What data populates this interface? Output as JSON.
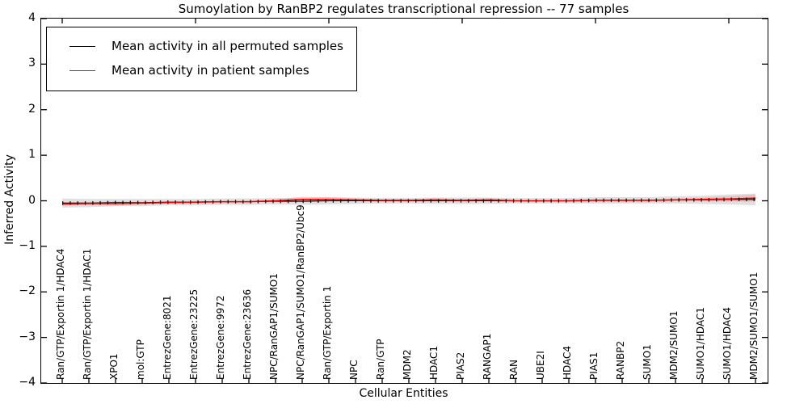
{
  "title": "Sumoylation by RanBP2 regulates transcriptional repression -- 77 samples",
  "axes": {
    "ylabel": "Inferred Activity",
    "xlabel": "Cellular Entities",
    "ytick_labels": [
      "4",
      "3",
      "2",
      "1",
      "0",
      "−1",
      "−2",
      "−3",
      "−4"
    ]
  },
  "legend": {
    "items": [
      {
        "label": "Mean activity in all permuted samples",
        "color": "#000000"
      },
      {
        "label": "Mean activity in patient samples",
        "color": "#ff0000"
      }
    ]
  },
  "chart_data": {
    "type": "line",
    "title": "Sumoylation by RanBP2 regulates transcriptional repression -- 77 samples",
    "xlabel": "Cellular Entities",
    "ylabel": "Inferred Activity",
    "ylim": [
      -4,
      4
    ],
    "yticks": [
      4,
      3,
      2,
      1,
      0,
      -1,
      -2,
      -3,
      -4
    ],
    "top_tick_category_indices": [
      0,
      5,
      10,
      15,
      20,
      25
    ],
    "grid": false,
    "legend_position": "upper left",
    "categories": [
      "Ran/GTP/Exportin 1/HDAC4",
      "Ran/GTP/Exportin 1/HDAC1",
      "XPO1",
      "mol:GTP",
      "EntrezGene:8021",
      "EntrezGene:23225",
      "EntrezGene:9972",
      "EntrezGene:23636",
      "NPC/RanGAP1/SUMO1",
      "NPC/RanGAP1/SUMO1/RanBP2/Ubc9",
      "Ran/GTP/Exportin 1",
      "NPC",
      "Ran/GTP",
      "MDM2",
      "HDAC1",
      "PIAS2",
      "RANGAP1",
      "RAN",
      "UBE2I",
      "HDAC4",
      "PIAS1",
      "RANBP2",
      "SUMO1",
      "MDM2/SUMO1",
      "SUMO1/HDAC1",
      "SUMO1/HDAC4",
      "MDM2/SUMO1/SUMO1"
    ],
    "series": [
      {
        "name": "Mean activity in all permuted samples",
        "color": "#000000",
        "style": "dotted-with-tick-markers",
        "values": [
          -0.05,
          -0.05,
          -0.04,
          -0.04,
          -0.03,
          -0.03,
          -0.02,
          -0.02,
          -0.01,
          -0.01,
          0.0,
          0.0,
          0.0,
          0.0,
          0.0,
          0.0,
          0.0,
          0.0,
          0.0,
          0.0,
          0.01,
          0.01,
          0.01,
          0.02,
          0.02,
          0.03,
          0.03
        ]
      },
      {
        "name": "Mean activity in patient samples",
        "color": "#ff0000",
        "style": "solid",
        "values": [
          -0.07,
          -0.06,
          -0.06,
          -0.05,
          -0.04,
          -0.03,
          -0.02,
          -0.02,
          0.0,
          0.03,
          0.03,
          0.02,
          0.01,
          0.01,
          0.02,
          0.01,
          0.02,
          0.0,
          0.0,
          0.0,
          0.01,
          0.01,
          0.01,
          0.02,
          0.03,
          0.04,
          0.06
        ]
      }
    ],
    "bands": [
      {
        "name": "permuted-envelope",
        "color": "#999999",
        "opacity": 0.3,
        "center_series": 0,
        "halfwidths": [
          0.1,
          0.09,
          0.08,
          0.08,
          0.07,
          0.07,
          0.07,
          0.07,
          0.07,
          0.08,
          0.08,
          0.07,
          0.06,
          0.06,
          0.07,
          0.07,
          0.07,
          0.06,
          0.06,
          0.06,
          0.07,
          0.07,
          0.07,
          0.08,
          0.09,
          0.11,
          0.13
        ]
      },
      {
        "name": "patient-envelope",
        "color": "#ff0000",
        "opacity": 0.13,
        "center_series": 1,
        "halfwidths": [
          0.04,
          0.03,
          0.05,
          0.03,
          0.02,
          0.02,
          0.02,
          0.02,
          0.03,
          0.06,
          0.05,
          0.03,
          0.02,
          0.02,
          0.04,
          0.02,
          0.04,
          0.02,
          0.02,
          0.02,
          0.02,
          0.02,
          0.02,
          0.03,
          0.04,
          0.06,
          0.08
        ]
      }
    ]
  }
}
